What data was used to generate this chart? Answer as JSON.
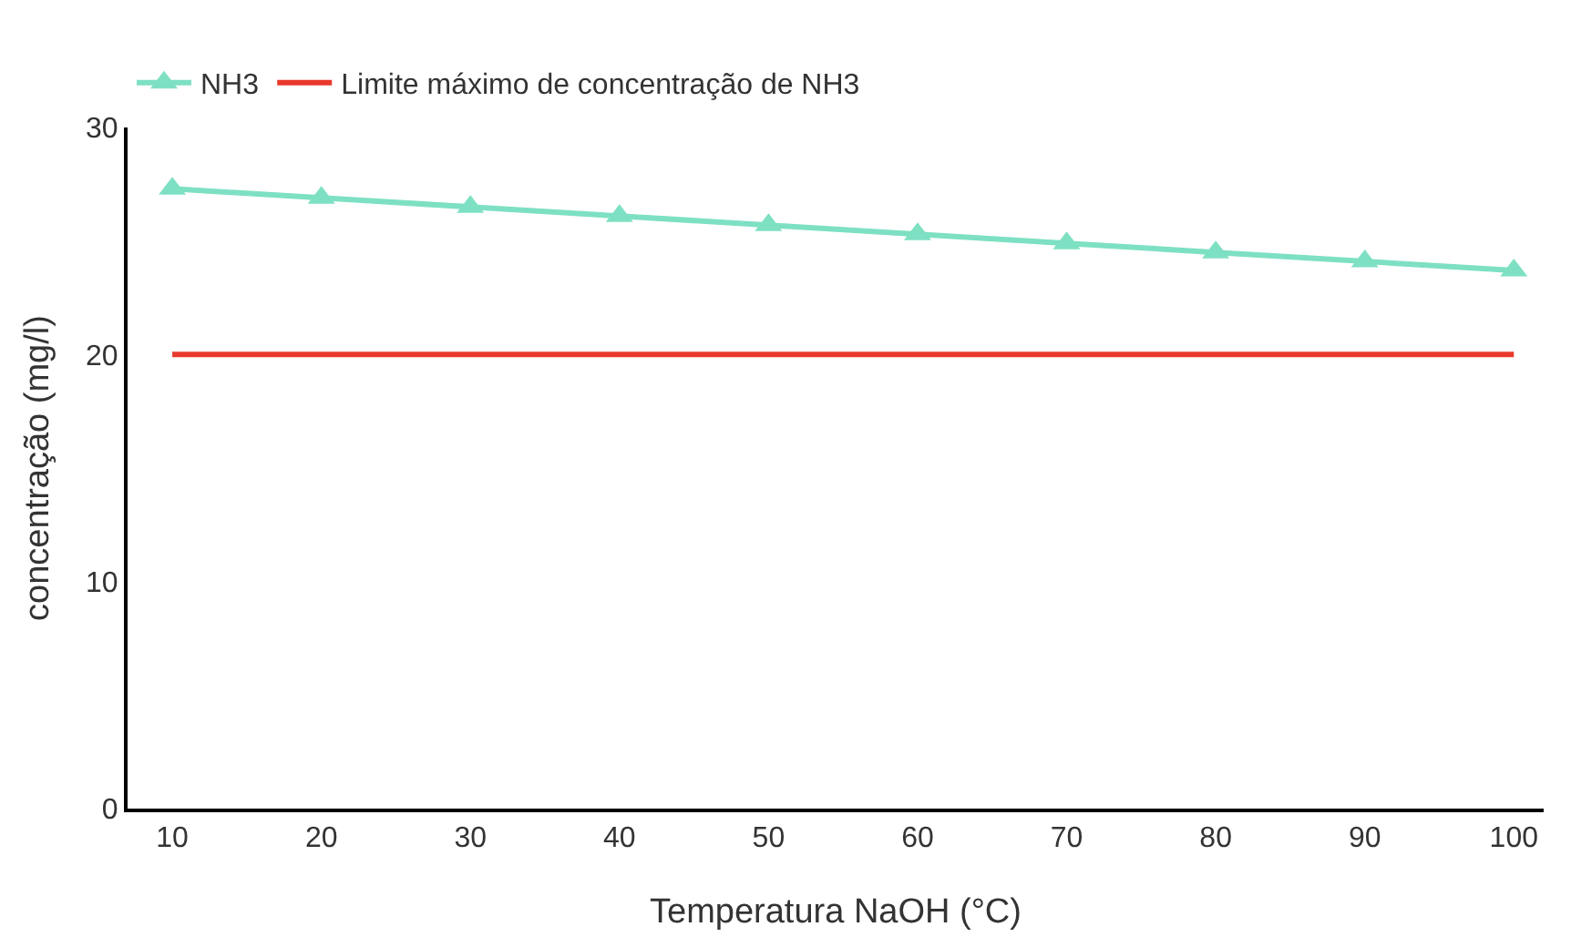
{
  "chart_data": {
    "type": "line",
    "xlabel": "Temperatura NaOH (°C)",
    "ylabel": "concentração (mg/l)",
    "categories": [
      "10",
      "20",
      "30",
      "40",
      "50",
      "60",
      "70",
      "80",
      "90",
      "100"
    ],
    "series": [
      {
        "name": "NH3",
        "color": "#7ee0c3",
        "marker": "triangle",
        "values": [
          27.3,
          26.9,
          26.5,
          26.1,
          25.7,
          25.3,
          24.9,
          24.5,
          24.1,
          23.7
        ]
      },
      {
        "name": "Limite máximo de concentração de NH3",
        "color": "#e8392c",
        "marker": "none",
        "values": [
          20,
          20,
          20,
          20,
          20,
          20,
          20,
          20,
          20,
          20
        ]
      }
    ],
    "ylim": [
      0,
      30
    ],
    "yticks": [
      0,
      10,
      20,
      30
    ],
    "legend": "top left"
  }
}
